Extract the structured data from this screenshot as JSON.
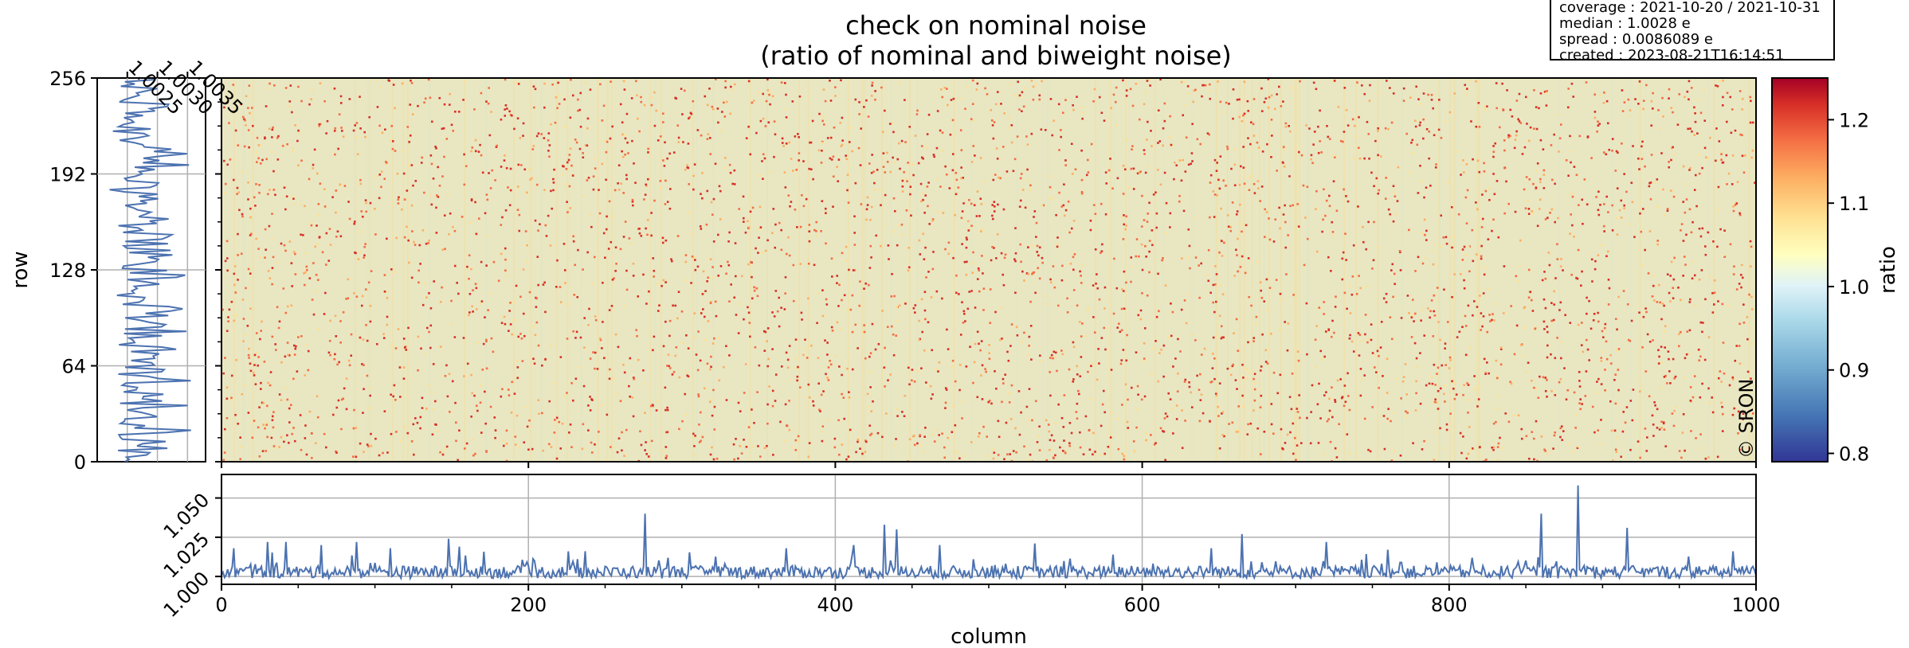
{
  "figure": {
    "title_line_1": "check on nominal noise",
    "title_line_2": "(ratio of nominal and biweight noise)"
  },
  "info_box": {
    "lines": [
      "coverage : 2021-10-20 / 2021-10-31",
      "median : 1.0028 e",
      "spread : 0.0086089 e",
      "created : 2023-08-21T16:14:51"
    ]
  },
  "copyright": "© SRON",
  "chart_data": [
    {
      "type": "heatmap",
      "name": "main-image",
      "xlabel": "",
      "ylabel": "row",
      "xlim": [
        0,
        1000
      ],
      "ylim": [
        0,
        256
      ],
      "x_ticks": [
        0,
        200,
        400,
        600,
        800,
        1000
      ],
      "y_ticks": [
        0,
        64,
        128,
        192,
        256
      ],
      "background_value": 1.03,
      "hot_pixel_value": 1.2,
      "colorscale": "RdYlBu_r",
      "grid": false
    },
    {
      "type": "line",
      "name": "column-profile",
      "xlabel": "column",
      "ylabel": "",
      "xlim": [
        0,
        1000
      ],
      "ylim": [
        0.995,
        1.065
      ],
      "x_ticks": [
        0,
        200,
        400,
        600,
        800,
        1000
      ],
      "y_ticks": [
        1.0,
        1.025,
        1.05
      ],
      "y_tick_labels": [
        "1.000",
        "1.025",
        "1.050"
      ],
      "baseline": 1.0028,
      "spikes": [
        {
          "x": 8,
          "y": 1.018
        },
        {
          "x": 30,
          "y": 1.022
        },
        {
          "x": 42,
          "y": 1.022
        },
        {
          "x": 65,
          "y": 1.02
        },
        {
          "x": 88,
          "y": 1.022
        },
        {
          "x": 110,
          "y": 1.018
        },
        {
          "x": 148,
          "y": 1.024
        },
        {
          "x": 155,
          "y": 1.019
        },
        {
          "x": 226,
          "y": 1.016
        },
        {
          "x": 276,
          "y": 1.04
        },
        {
          "x": 368,
          "y": 1.018
        },
        {
          "x": 412,
          "y": 1.02
        },
        {
          "x": 432,
          "y": 1.033
        },
        {
          "x": 440,
          "y": 1.03
        },
        {
          "x": 468,
          "y": 1.02
        },
        {
          "x": 530,
          "y": 1.021
        },
        {
          "x": 645,
          "y": 1.018
        },
        {
          "x": 665,
          "y": 1.027
        },
        {
          "x": 720,
          "y": 1.022
        },
        {
          "x": 760,
          "y": 1.017
        },
        {
          "x": 860,
          "y": 1.04
        },
        {
          "x": 884,
          "y": 1.058
        },
        {
          "x": 916,
          "y": 1.031
        },
        {
          "x": 985,
          "y": 1.016
        }
      ],
      "grid": true
    },
    {
      "type": "line",
      "name": "row-profile",
      "xlabel": "",
      "ylabel": "",
      "xlim": [
        1.002,
        1.0038
      ],
      "ylim": [
        0,
        256
      ],
      "x_ticks": [
        1.0025,
        1.003,
        1.0035
      ],
      "x_tick_labels": [
        "1.0025",
        "1.0030",
        "1.0035"
      ],
      "grid": true
    },
    {
      "type": "heatmap",
      "name": "colorbar",
      "ylabel": "ratio",
      "ylim": [
        0.79,
        1.25
      ],
      "ticks": [
        0.8,
        0.9,
        1.0,
        1.1,
        1.2
      ],
      "tick_labels": [
        "0.8",
        "0.9",
        "1.0",
        "1.1",
        "1.2"
      ],
      "colorscale": "RdYlBu_r"
    }
  ]
}
